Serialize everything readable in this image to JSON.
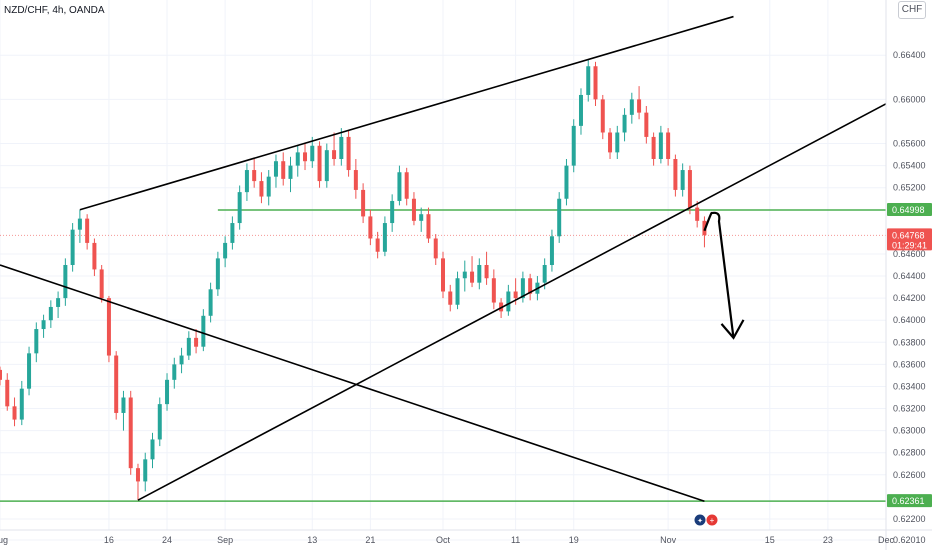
{
  "header": {
    "title": "NZD/CHF, 4h, OANDA",
    "currency_button": "CHF"
  },
  "colors": {
    "up": "#26a69a",
    "down": "#ef5350",
    "level": "#4caf50",
    "trendline": "#000000",
    "grid": "#f0f3fa"
  },
  "markers": {
    "flags": [
      "flag-nz-icon",
      "flag-ch-icon"
    ]
  },
  "chart_data": {
    "type": "candlestick",
    "title": "NZD/CHF, 4h, OANDA",
    "yaxis": {
      "range": [
        0.621,
        0.669
      ],
      "ticks": [
        "0.66400",
        "0.66000",
        "0.65600",
        "0.65400",
        "0.65200",
        "0.64600",
        "0.64400",
        "0.64200",
        "0.64000",
        "0.63800",
        "0.63600",
        "0.63400",
        "0.63200",
        "0.63000",
        "0.62800",
        "0.62600",
        "0.62200",
        "0.62010"
      ]
    },
    "xaxis": {
      "range": [
        "2021-08-01",
        "2021-12-01"
      ],
      "ticks": [
        {
          "label": "Aug",
          "date": "2021-08-01"
        },
        {
          "label": "16",
          "date": "2021-08-16"
        },
        {
          "label": "24",
          "date": "2021-08-24"
        },
        {
          "label": "Sep",
          "date": "2021-09-01"
        },
        {
          "label": "13",
          "date": "2021-09-13"
        },
        {
          "label": "21",
          "date": "2021-09-21"
        },
        {
          "label": "Oct",
          "date": "2021-10-01"
        },
        {
          "label": "11",
          "date": "2021-10-11"
        },
        {
          "label": "19",
          "date": "2021-10-19"
        },
        {
          "label": "Nov",
          "date": "2021-11-01"
        },
        {
          "label": "15",
          "date": "2021-11-15"
        },
        {
          "label": "23",
          "date": "2021-11-23"
        },
        {
          "label": "Dec",
          "date": "2021-12-01"
        }
      ]
    },
    "price_labels": [
      {
        "name": "support-level",
        "text": "0.64998",
        "value": 0.64998,
        "color": "#4caf50"
      },
      {
        "name": "last-price",
        "text": "0.64768",
        "subtext": "01:29:41",
        "value": 0.64768,
        "color": "#ef5350"
      },
      {
        "name": "bottom-level",
        "text": "0.62361",
        "value": 0.62361,
        "color": "#4caf50"
      }
    ],
    "horizontal_levels": [
      {
        "name": "support-level",
        "value": 0.64998,
        "from": "2021-08-31",
        "to": "2021-12-01"
      },
      {
        "name": "bottom-level",
        "value": 0.62361,
        "from": "2021-08-01",
        "to": "2021-12-01"
      }
    ],
    "trendlines": [
      {
        "name": "upper-trendline",
        "points": [
          [
            "2021-08-12",
            0.65
          ],
          [
            "2021-11-10",
            0.6675
          ]
        ]
      },
      {
        "name": "lower-trendline",
        "points": [
          [
            "2021-08-20",
            0.6237
          ],
          [
            "2021-12-01",
            0.6596
          ]
        ]
      },
      {
        "name": "descending-trendline",
        "points": [
          [
            "2021-08-01",
            0.645
          ],
          [
            "2021-11-06",
            0.6236
          ]
        ]
      }
    ],
    "projection": [
      [
        "2021-11-06",
        0.6481
      ],
      [
        "2021-11-07",
        0.6497
      ],
      [
        "2021-11-08",
        0.6495
      ],
      [
        "2021-11-10",
        0.6384
      ]
    ],
    "candles_ohlc": [
      [
        "2021-08-01",
        0.6355,
        0.6358,
        0.6341,
        0.6346
      ],
      [
        "2021-08-02",
        0.6346,
        0.6352,
        0.6318,
        0.6322
      ],
      [
        "2021-08-03",
        0.6322,
        0.633,
        0.6304,
        0.631
      ],
      [
        "2021-08-04",
        0.631,
        0.6345,
        0.6305,
        0.6338
      ],
      [
        "2021-08-05",
        0.6338,
        0.6376,
        0.6332,
        0.637
      ],
      [
        "2021-08-06",
        0.637,
        0.6398,
        0.6362,
        0.6392
      ],
      [
        "2021-08-07",
        0.6392,
        0.6405,
        0.6384,
        0.64
      ],
      [
        "2021-08-08",
        0.64,
        0.6418,
        0.6393,
        0.6412
      ],
      [
        "2021-08-09",
        0.6412,
        0.6426,
        0.6402,
        0.642
      ],
      [
        "2021-08-10",
        0.642,
        0.6456,
        0.6413,
        0.645
      ],
      [
        "2021-08-11",
        0.645,
        0.6488,
        0.6444,
        0.6482
      ],
      [
        "2021-08-12",
        0.6482,
        0.65,
        0.647,
        0.6492
      ],
      [
        "2021-08-13",
        0.6492,
        0.6496,
        0.6464,
        0.647
      ],
      [
        "2021-08-14",
        0.647,
        0.6474,
        0.644,
        0.6446
      ],
      [
        "2021-08-15",
        0.6446,
        0.645,
        0.6416,
        0.642
      ],
      [
        "2021-08-16",
        0.642,
        0.6422,
        0.6362,
        0.6368
      ],
      [
        "2021-08-17",
        0.6368,
        0.6372,
        0.631,
        0.6316
      ],
      [
        "2021-08-18",
        0.6316,
        0.6336,
        0.63,
        0.633
      ],
      [
        "2021-08-19",
        0.633,
        0.6336,
        0.626,
        0.6266
      ],
      [
        "2021-08-20",
        0.6266,
        0.627,
        0.6237,
        0.6254
      ],
      [
        "2021-08-21",
        0.6254,
        0.628,
        0.6245,
        0.6274
      ],
      [
        "2021-08-22",
        0.6274,
        0.6298,
        0.6266,
        0.6292
      ],
      [
        "2021-08-23",
        0.6292,
        0.633,
        0.6286,
        0.6324
      ],
      [
        "2021-08-24",
        0.6324,
        0.6352,
        0.6318,
        0.6346
      ],
      [
        "2021-08-25",
        0.6346,
        0.6366,
        0.6338,
        0.636
      ],
      [
        "2021-08-26",
        0.636,
        0.6375,
        0.6352,
        0.6368
      ],
      [
        "2021-08-27",
        0.6368,
        0.639,
        0.6364,
        0.6384
      ],
      [
        "2021-08-28",
        0.6384,
        0.6392,
        0.637,
        0.6376
      ],
      [
        "2021-08-29",
        0.6376,
        0.641,
        0.6372,
        0.6404
      ],
      [
        "2021-08-30",
        0.6404,
        0.6434,
        0.6398,
        0.6428
      ],
      [
        "2021-08-31",
        0.6428,
        0.6462,
        0.6422,
        0.6456
      ],
      [
        "2021-09-01",
        0.6456,
        0.6476,
        0.6448,
        0.647
      ],
      [
        "2021-09-02",
        0.647,
        0.6494,
        0.6464,
        0.6488
      ],
      [
        "2021-09-03",
        0.6488,
        0.6522,
        0.6482,
        0.6516
      ],
      [
        "2021-09-04",
        0.6516,
        0.6542,
        0.6508,
        0.6536
      ],
      [
        "2021-09-05",
        0.6536,
        0.6546,
        0.652,
        0.6526
      ],
      [
        "2021-09-06",
        0.6526,
        0.6534,
        0.6506,
        0.6512
      ],
      [
        "2021-09-07",
        0.6512,
        0.6536,
        0.6504,
        0.653
      ],
      [
        "2021-09-08",
        0.653,
        0.655,
        0.652,
        0.6544
      ],
      [
        "2021-09-09",
        0.6544,
        0.6552,
        0.6522,
        0.6528
      ],
      [
        "2021-09-10",
        0.6528,
        0.6548,
        0.6516,
        0.654
      ],
      [
        "2021-09-11",
        0.654,
        0.6558,
        0.653,
        0.6552
      ],
      [
        "2021-09-12",
        0.6552,
        0.656,
        0.6536,
        0.6544
      ],
      [
        "2021-09-13",
        0.6544,
        0.6566,
        0.6538,
        0.6558
      ],
      [
        "2021-09-14",
        0.6558,
        0.6562,
        0.652,
        0.6526
      ],
      [
        "2021-09-15",
        0.6526,
        0.656,
        0.652,
        0.6554
      ],
      [
        "2021-09-16",
        0.6554,
        0.657,
        0.654,
        0.6546
      ],
      [
        "2021-09-17",
        0.6546,
        0.6574,
        0.654,
        0.6566
      ],
      [
        "2021-09-18",
        0.6566,
        0.6572,
        0.653,
        0.6536
      ],
      [
        "2021-09-19",
        0.6536,
        0.6546,
        0.651,
        0.6518
      ],
      [
        "2021-09-20",
        0.6518,
        0.6524,
        0.6488,
        0.6494
      ],
      [
        "2021-09-21",
        0.6494,
        0.65,
        0.6468,
        0.6474
      ],
      [
        "2021-09-22",
        0.6474,
        0.648,
        0.6456,
        0.6462
      ],
      [
        "2021-09-23",
        0.6462,
        0.6494,
        0.6458,
        0.6488
      ],
      [
        "2021-09-24",
        0.6488,
        0.6514,
        0.648,
        0.6508
      ],
      [
        "2021-09-25",
        0.6508,
        0.654,
        0.6504,
        0.6534
      ],
      [
        "2021-09-26",
        0.6534,
        0.6538,
        0.6504,
        0.651
      ],
      [
        "2021-09-27",
        0.651,
        0.6516,
        0.6486,
        0.649
      ],
      [
        "2021-09-28",
        0.649,
        0.6502,
        0.648,
        0.6496
      ],
      [
        "2021-09-29",
        0.6496,
        0.6502,
        0.647,
        0.6474
      ],
      [
        "2021-09-30",
        0.6474,
        0.6478,
        0.645,
        0.6456
      ],
      [
        "2021-10-01",
        0.6456,
        0.6462,
        0.642,
        0.6426
      ],
      [
        "2021-10-02",
        0.6426,
        0.6432,
        0.6408,
        0.6414
      ],
      [
        "2021-10-03",
        0.6414,
        0.6444,
        0.641,
        0.6438
      ],
      [
        "2021-10-04",
        0.6438,
        0.6454,
        0.6426,
        0.6444
      ],
      [
        "2021-10-05",
        0.6444,
        0.6458,
        0.643,
        0.6434
      ],
      [
        "2021-10-06",
        0.6434,
        0.6456,
        0.6428,
        0.645
      ],
      [
        "2021-10-07",
        0.645,
        0.6462,
        0.6432,
        0.6438
      ],
      [
        "2021-10-08",
        0.6438,
        0.6446,
        0.641,
        0.6416
      ],
      [
        "2021-10-09",
        0.6416,
        0.642,
        0.6402,
        0.6408
      ],
      [
        "2021-10-10",
        0.6408,
        0.6432,
        0.6404,
        0.6426
      ],
      [
        "2021-10-11",
        0.6426,
        0.6438,
        0.6414,
        0.642
      ],
      [
        "2021-10-12",
        0.642,
        0.6444,
        0.6416,
        0.6438
      ],
      [
        "2021-10-13",
        0.6438,
        0.6442,
        0.6418,
        0.6424
      ],
      [
        "2021-10-14",
        0.6424,
        0.644,
        0.6418,
        0.6434
      ],
      [
        "2021-10-15",
        0.6434,
        0.6456,
        0.6428,
        0.645
      ],
      [
        "2021-10-16",
        0.645,
        0.6482,
        0.6444,
        0.6476
      ],
      [
        "2021-10-17",
        0.6476,
        0.6516,
        0.647,
        0.651
      ],
      [
        "2021-10-18",
        0.651,
        0.6546,
        0.6504,
        0.654
      ],
      [
        "2021-10-19",
        0.654,
        0.6582,
        0.6534,
        0.6576
      ],
      [
        "2021-10-20",
        0.6576,
        0.661,
        0.6568,
        0.6604
      ],
      [
        "2021-10-21",
        0.6604,
        0.6636,
        0.6598,
        0.663
      ],
      [
        "2021-10-22",
        0.663,
        0.6634,
        0.6594,
        0.66
      ],
      [
        "2021-10-23",
        0.66,
        0.6604,
        0.6564,
        0.657
      ],
      [
        "2021-10-24",
        0.657,
        0.6574,
        0.6546,
        0.6552
      ],
      [
        "2021-10-25",
        0.6552,
        0.6576,
        0.6546,
        0.657
      ],
      [
        "2021-10-26",
        0.657,
        0.6592,
        0.6562,
        0.6586
      ],
      [
        "2021-10-27",
        0.6586,
        0.6606,
        0.6578,
        0.66
      ],
      [
        "2021-10-28",
        0.66,
        0.6612,
        0.6582,
        0.6588
      ],
      [
        "2021-10-29",
        0.6588,
        0.6594,
        0.656,
        0.6566
      ],
      [
        "2021-10-30",
        0.6566,
        0.657,
        0.654,
        0.6546
      ],
      [
        "2021-10-31",
        0.6546,
        0.6576,
        0.6542,
        0.657
      ],
      [
        "2021-11-01",
        0.657,
        0.6574,
        0.654,
        0.6546
      ],
      [
        "2021-11-02",
        0.6546,
        0.655,
        0.6512,
        0.6518
      ],
      [
        "2021-11-03",
        0.6518,
        0.6542,
        0.6512,
        0.6536
      ],
      [
        "2021-11-04",
        0.6536,
        0.654,
        0.6496,
        0.6502
      ],
      [
        "2021-11-05",
        0.6502,
        0.6508,
        0.6484,
        0.649
      ],
      [
        "2021-11-06",
        0.649,
        0.6494,
        0.6466,
        0.6477
      ]
    ]
  }
}
